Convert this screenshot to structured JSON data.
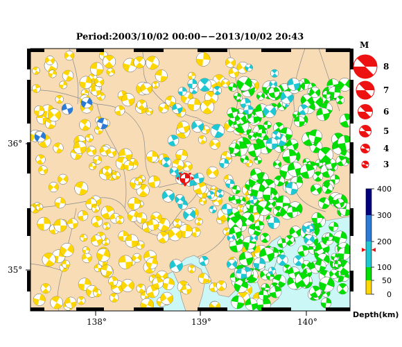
{
  "title": "Period:2003/10/02 00:00−−2013/10/02 20:43",
  "axes": {
    "x_ticks": [
      "138°",
      "139°",
      "140°"
    ],
    "y_ticks": [
      "36°",
      "35°"
    ]
  },
  "magnitude_legend": {
    "header": "M",
    "labels": [
      "8",
      "7",
      "6",
      "5",
      "4",
      "3"
    ]
  },
  "depth_scale": {
    "caption": "Depth(km)",
    "labels": [
      "400",
      "300",
      "200",
      "100",
      "50",
      "0"
    ],
    "colors": {
      "shallow": "#ffd700",
      "mid": "#00e000",
      "deep": "#1ec8d2",
      "deeper": "#2a7ad8",
      "deepest": "#000080"
    }
  },
  "colors": {
    "land": "#f7dcb6",
    "sea": "#ccf7f7",
    "border": "#888888",
    "marker": "#ee1111"
  }
}
